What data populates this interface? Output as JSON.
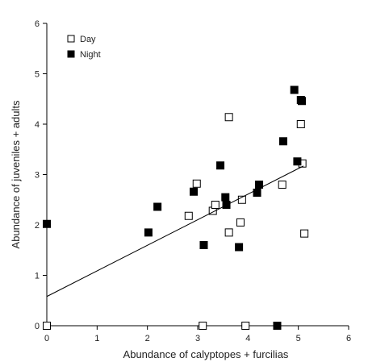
{
  "chart_data": {
    "type": "scatter",
    "xlabel": "Abundance of calyptopes + furcilias",
    "ylabel": "Abundance of juveniles + adults",
    "xlim": [
      0,
      6
    ],
    "ylim": [
      0,
      6
    ],
    "x_ticks": [
      "0",
      "1",
      "2",
      "3",
      "4",
      "5",
      "6"
    ],
    "y_ticks": [
      "0",
      "1",
      "2",
      "3",
      "4",
      "5",
      "6"
    ],
    "legend_position": "top-left",
    "grid": false,
    "series": [
      {
        "name": "Day",
        "marker": "open-square",
        "color": "#000000",
        "points": [
          [
            0,
            0
          ],
          [
            2.82,
            2.18
          ],
          [
            2.98,
            2.82
          ],
          [
            3.1,
            0
          ],
          [
            3.3,
            2.28
          ],
          [
            3.35,
            2.4
          ],
          [
            3.62,
            4.14
          ],
          [
            3.62,
            1.85
          ],
          [
            3.85,
            2.05
          ],
          [
            3.88,
            2.5
          ],
          [
            3.95,
            0
          ],
          [
            4.68,
            2.8
          ],
          [
            5.05,
            4.0
          ],
          [
            5.08,
            3.22
          ],
          [
            5.12,
            1.83
          ]
        ]
      },
      {
        "name": "Night",
        "marker": "filled-square",
        "color": "#000000",
        "points": [
          [
            0,
            2.02
          ],
          [
            2.02,
            1.85
          ],
          [
            2.2,
            2.36
          ],
          [
            2.92,
            2.66
          ],
          [
            3.12,
            1.6
          ],
          [
            3.45,
            3.18
          ],
          [
            3.55,
            2.55
          ],
          [
            3.57,
            2.4
          ],
          [
            3.82,
            1.56
          ],
          [
            4.18,
            2.64
          ],
          [
            4.22,
            2.8
          ],
          [
            4.58,
            0
          ],
          [
            4.7,
            3.66
          ],
          [
            4.92,
            4.68
          ],
          [
            4.98,
            3.26
          ],
          [
            5.05,
            4.48
          ],
          [
            5.07,
            4.46
          ]
        ]
      }
    ],
    "trendline": {
      "x": [
        0,
        5.1
      ],
      "y": [
        0.58,
        3.17
      ]
    }
  }
}
